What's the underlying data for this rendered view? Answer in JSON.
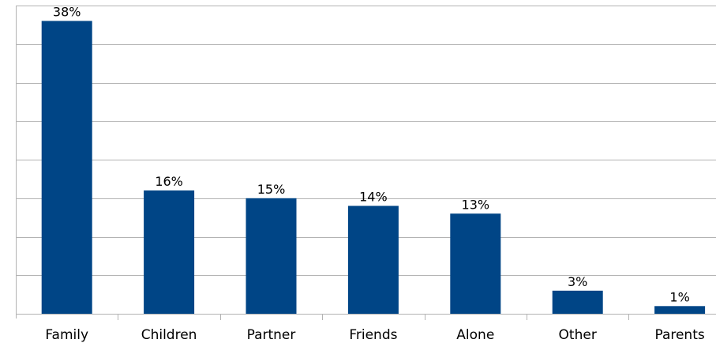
{
  "chart_data": {
    "type": "bar",
    "categories": [
      "Family",
      "Children",
      "Partner",
      "Friends",
      "Alone",
      "Other",
      "Parents"
    ],
    "values": [
      38,
      16,
      15,
      14,
      13,
      3,
      1
    ],
    "data_labels": [
      "38%",
      "16%",
      "15%",
      "14%",
      "13%",
      "3%",
      "1%"
    ],
    "ylim": [
      0,
      40
    ],
    "grid": true,
    "bar_color": "#004586",
    "grid_color": "#b3b3b3"
  }
}
